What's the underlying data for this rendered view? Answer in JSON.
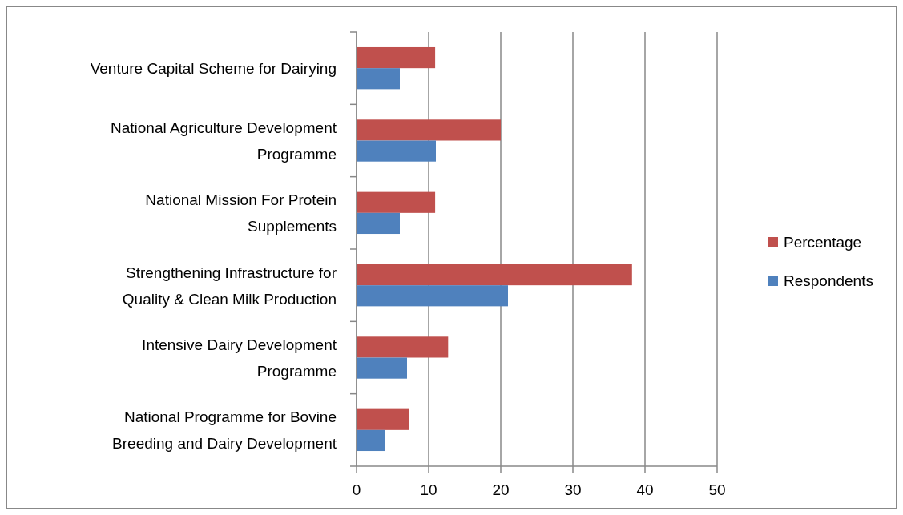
{
  "chart_data": {
    "type": "bar",
    "orientation": "horizontal",
    "categories": [
      "Venture Capital Scheme for Dairying",
      "National Agriculture Development Programme",
      "National Mission For Protein Supplements",
      "Strengthening Infrastructure for Quality & Clean Milk Production",
      "Intensive Dairy Development Programme",
      "National Programme for Bovine Breeding and Dairy Development"
    ],
    "series": [
      {
        "name": "Percentage",
        "color": "#c0504d",
        "values": [
          10.9,
          20,
          10.9,
          38.2,
          12.7,
          7.3
        ]
      },
      {
        "name": "Respondents",
        "color": "#4f81bd",
        "values": [
          6,
          11,
          6,
          21,
          7,
          4
        ]
      }
    ],
    "xlim": [
      0,
      50
    ],
    "xticks": [
      0,
      10,
      20,
      30,
      40,
      50
    ],
    "grid": "x",
    "legend": "right"
  }
}
